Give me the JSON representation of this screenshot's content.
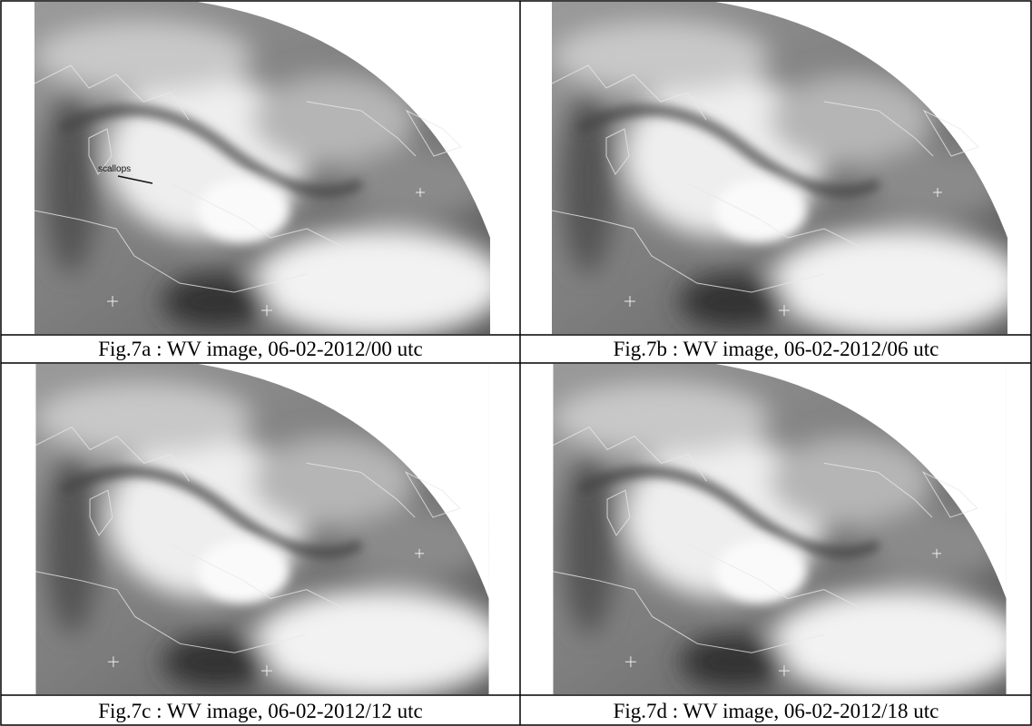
{
  "figures": [
    {
      "caption": "Fig.7a : WV image, 06-02-2012/00 utc",
      "annotation": "scallops"
    },
    {
      "caption": "Fig.7b : WV image, 06-02-2012/06 utc"
    },
    {
      "caption": "Fig.7c : WV image, 06-02-2012/12 utc"
    },
    {
      "caption": "Fig.7d : WV image, 06-02-2012/18 utc"
    }
  ]
}
